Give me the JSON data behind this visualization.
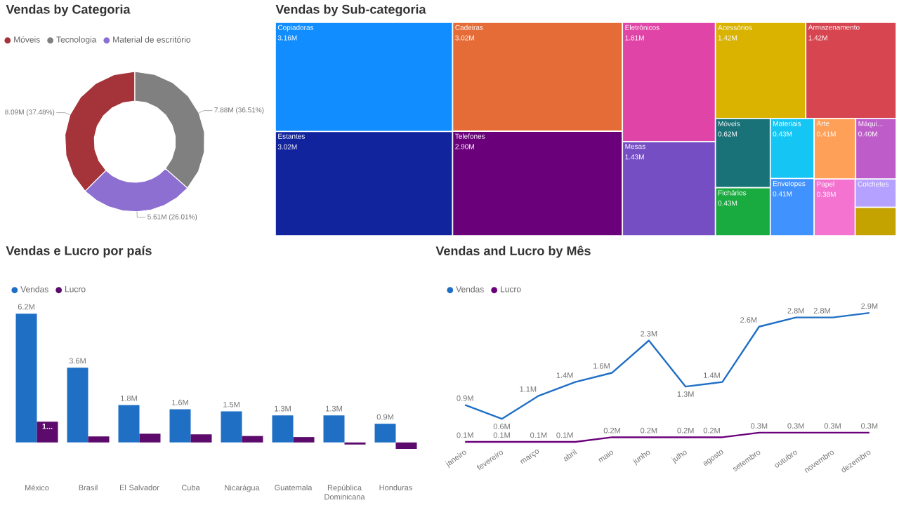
{
  "chart_data": [
    {
      "type": "donut",
      "title": "Vendas by Categoria",
      "legend": "top left",
      "categories": [
        "Móveis",
        "Tecnologia",
        "Material de escritório"
      ],
      "values": [
        37.48,
        36.51,
        26.01
      ],
      "value_labels": [
        "8.09M (37.48%)",
        "7.88M (36.51%)",
        "5.61M (26.01%)"
      ],
      "colors": [
        "#a4343a",
        "#808080",
        "#8c6fd1"
      ]
    },
    {
      "type": "other",
      "title": "Vendas by Sub-categoria",
      "categories": [
        "Copiadoras",
        "Estantes",
        "Cadeiras",
        "Telefones",
        "Eletrônicos",
        "Mesas",
        "Acessórios",
        "Armazenamento",
        "Móveis",
        "Fichários",
        "Materiais",
        "Envelopes",
        "Arte",
        "Máqui...",
        "Papel",
        "Colchetes",
        null
      ],
      "values": [
        3.16,
        3.02,
        3.02,
        2.9,
        1.81,
        1.43,
        1.42,
        1.42,
        0.62,
        0.43,
        0.43,
        0.41,
        0.41,
        0.4,
        0.38,
        null,
        null
      ],
      "value_labels": [
        "3.16M",
        "3.02M",
        "3.02M",
        "2.90M",
        "1.81M",
        "1.43M",
        "1.42M",
        "1.42M",
        "0.62M",
        "0.43M",
        "0.43M",
        "0.41M",
        "0.41M",
        "0.40M",
        "0.38M",
        null,
        null
      ],
      "colors": [
        "#118dff",
        "#12239e",
        "#e66c37",
        "#6b007b",
        "#e044a7",
        "#744ec2",
        "#d9b300",
        "#d64550",
        "#197278",
        "#1aab40",
        "#15c6f4",
        "#4092ff",
        "#ffa058",
        "#be5dc9",
        "#f472d0",
        "#b5a1ff",
        "#c4a200"
      ]
    },
    {
      "type": "bar",
      "title": "Vendas e Lucro por país",
      "legend": "top left",
      "categories": [
        "México",
        "Brasil",
        "El Salvador",
        "Cuba",
        "Nicarágua",
        "Guatemala",
        "República Dominicana",
        "Honduras"
      ],
      "series": [
        {
          "name": "Vendas",
          "color": "#1f6fc5",
          "values": [
            6.2,
            3.6,
            1.8,
            1.6,
            1.5,
            1.3,
            1.3,
            0.9
          ],
          "value_labels": [
            "6.2M",
            "3.6M",
            "1.8M",
            "1.6M",
            "1.5M",
            "1.3M",
            "1.3M",
            "0.9M"
          ]
        },
        {
          "name": "Lucro",
          "color": "#5c0a6b",
          "values": [
            1.0,
            0.29,
            0.42,
            0.39,
            0.31,
            0.26,
            -0.1,
            -0.31
          ],
          "value_labels": [
            "1...",
            null,
            null,
            null,
            null,
            null,
            null,
            null
          ]
        }
      ]
    },
    {
      "type": "line",
      "title": "Vendas and Lucro by Mês",
      "legend": "top left",
      "categories": [
        "janeiro",
        "fevereiro",
        "março",
        "abril",
        "maio",
        "junho",
        "julho",
        "agosto",
        "setembro",
        "outubro",
        "novembro",
        "dezembro"
      ],
      "series": [
        {
          "name": "Vendas",
          "color": "#1f6fc5",
          "values": [
            0.9,
            0.6,
            1.1,
            1.4,
            1.6,
            2.3,
            1.3,
            1.4,
            2.6,
            2.8,
            2.8,
            2.9
          ],
          "value_labels": [
            "0.9M",
            "0.6M",
            "1.1M",
            "1.4M",
            "1.6M",
            "2.3M",
            "1.3M",
            "1.4M",
            "2.6M",
            "2.8M",
            "2.8M",
            "2.9M"
          ]
        },
        {
          "name": "Lucro",
          "color": "#6b007b",
          "values": [
            0.1,
            0.1,
            0.1,
            0.1,
            0.2,
            0.2,
            0.2,
            0.2,
            0.3,
            0.3,
            0.3,
            0.3
          ],
          "value_labels": [
            "0.1M",
            "0.1M",
            "0.1M",
            "0.1M",
            "0.2M",
            "0.2M",
            "0.2M",
            "0.2M",
            "0.3M",
            "0.3M",
            "0.3M",
            "0.3M"
          ]
        }
      ]
    }
  ]
}
